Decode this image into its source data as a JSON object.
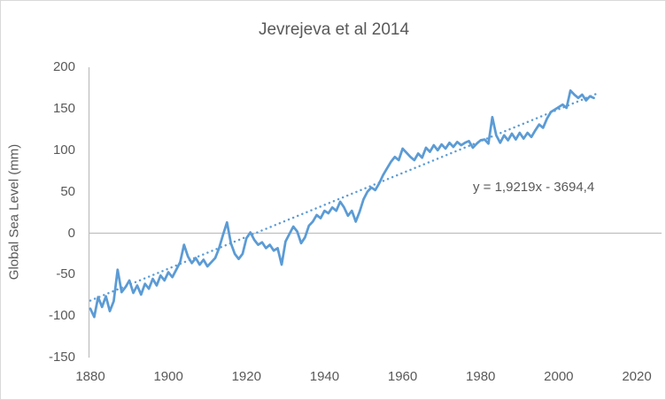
{
  "window": {
    "background": "#ffffff",
    "border_color": "#d9d9d9"
  },
  "chart_data": {
    "type": "line",
    "title": "Jevrejeva et al 2014",
    "xlabel": "",
    "ylabel": "Global Sea Level (mm)",
    "xlim": [
      1880,
      2020
    ],
    "ylim": [
      -150,
      200
    ],
    "x_ticks": [
      1880,
      1900,
      1920,
      1940,
      1960,
      1980,
      2000,
      2020
    ],
    "y_ticks": [
      200,
      150,
      100,
      50,
      0,
      -50,
      -100,
      -150
    ],
    "grid": "zero-line-only",
    "legend": "none",
    "series": [
      {
        "name": "Global Sea Level",
        "color": "#5B9BD5",
        "x_start": 1880,
        "x_step": 1,
        "values": [
          -91,
          -101,
          -77,
          -89,
          -76,
          -94,
          -82,
          -44,
          -71,
          -65,
          -57,
          -72,
          -63,
          -74,
          -61,
          -67,
          -55,
          -63,
          -51,
          -57,
          -47,
          -53,
          -44,
          -35,
          -14,
          -28,
          -36,
          -30,
          -38,
          -32,
          -40,
          -35,
          -30,
          -18,
          -2,
          13,
          -12,
          -25,
          -31,
          -25,
          -6,
          1,
          -8,
          -14,
          -11,
          -18,
          -14,
          -21,
          -18,
          -38,
          -10,
          -1,
          8,
          2,
          -12,
          -5,
          9,
          14,
          22,
          18,
          27,
          24,
          31,
          27,
          38,
          31,
          21,
          27,
          14,
          26,
          41,
          50,
          55,
          52,
          60,
          70,
          78,
          86,
          92,
          88,
          102,
          97,
          92,
          88,
          96,
          91,
          103,
          98,
          106,
          100,
          107,
          102,
          109,
          104,
          110,
          106,
          109,
          111,
          103,
          108,
          112,
          113,
          108,
          140,
          118,
          109,
          118,
          112,
          120,
          113,
          121,
          114,
          121,
          116,
          124,
          131,
          127,
          138,
          146,
          149,
          152,
          155,
          151,
          172,
          167,
          163,
          167,
          160,
          165,
          163
        ]
      }
    ],
    "trendline": {
      "equation": "y = 1,9219x - 3694,4",
      "slope": 1.9219,
      "intercept": -3694.4,
      "x_range": [
        1880,
        2009.8
      ],
      "style": "dotted",
      "color": "#5B9BD5"
    },
    "colors": {
      "series_line": "#5B9BD5",
      "trend_line": "#5B9BD5",
      "axis_line": "#BFBFBF",
      "zero_gridline": "#BFBFBF",
      "text": "#595959"
    }
  }
}
